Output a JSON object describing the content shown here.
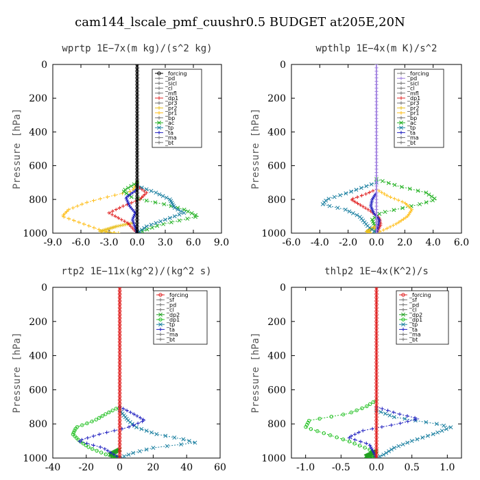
{
  "title": "cam144_lscale_pmf_cuushr0.5  BUDGET at205E,20N",
  "chart_data": [
    {
      "type": "line",
      "title": "wprtp   1E−7x(m kg)/(s^2 kg)",
      "ylabel": "Pressure [hPa]",
      "xlim": [
        -9,
        9
      ],
      "xticks": [
        "-9.0",
        "-6.0",
        "-3.0",
        "0.0",
        "3.0",
        "6.0",
        "9.0"
      ],
      "ylim": [
        1000,
        0
      ],
      "yticks": [
        "0",
        "200",
        "400",
        "600",
        "800",
        "1000"
      ],
      "legend": [
        "_forcing",
        "_pd",
        "_sicl",
        "_cl",
        "_mfl",
        "_dp1",
        "_pr3",
        "_pr2",
        "_pr1",
        "_bp",
        "_ac",
        "_tp",
        "_ta",
        "_ma",
        "_bt"
      ],
      "series": [
        {
          "name": "_forcing",
          "color": "#000000",
          "marker": "o",
          "p": [
            0,
            1000
          ],
          "v": [
            0,
            0
          ]
        },
        {
          "name": "_pr1",
          "color": "#ffc020",
          "marker": "+",
          "p": [
            700,
            750,
            790,
            820,
            860,
            900,
            940,
            980,
            1000
          ],
          "v": [
            0,
            -0.5,
            -3.5,
            -5.5,
            -7.3,
            -8.0,
            -6.0,
            -4.0,
            -2.5
          ]
        },
        {
          "name": "_pr2",
          "color": "#e8c020",
          "marker": "+",
          "p": [
            940,
            960,
            990,
            1000
          ],
          "v": [
            -0.5,
            -2.2,
            -4.0,
            -2.0
          ]
        },
        {
          "name": "_dp1",
          "color": "#e02020",
          "marker": "+",
          "p": [
            720,
            760,
            800,
            840,
            880,
            940,
            1000
          ],
          "v": [
            0,
            1.0,
            0.3,
            -1.5,
            -3.0,
            -1.0,
            0
          ]
        },
        {
          "name": "_ac",
          "color": "#20b020",
          "marker": "x",
          "p": [
            700,
            750,
            790,
            830,
            860,
            900,
            950,
            1000
          ],
          "v": [
            0,
            -1.5,
            -0.5,
            3.0,
            5.0,
            6.5,
            2.5,
            0
          ]
        },
        {
          "name": "_tp",
          "color": "#1a7fa0",
          "marker": "x",
          "p": [
            720,
            760,
            800,
            850,
            880,
            920,
            960,
            1000
          ],
          "v": [
            0,
            2.0,
            3.5,
            4.0,
            5.0,
            3.0,
            1.0,
            0
          ]
        },
        {
          "name": "_ta",
          "color": "#2020c0",
          "marker": "+",
          "p": [
            740,
            790,
            840,
            880,
            920,
            1000
          ],
          "v": [
            0,
            -1.2,
            -0.8,
            -0.2,
            -0.5,
            0
          ]
        }
      ]
    },
    {
      "type": "line",
      "title": "wpthlp   1E−4x(m K)/s^2",
      "ylabel": "Pressure [hPa]",
      "xlim": [
        -6,
        6
      ],
      "xticks": [
        "-6.0",
        "-4.0",
        "-2.0",
        "0.0",
        "2.0",
        "4.0",
        "6.0"
      ],
      "ylim": [
        1000,
        0
      ],
      "yticks": [
        "0",
        "200",
        "400",
        "600",
        "800",
        "1000"
      ],
      "legend": [
        "_forcing",
        "_pd",
        "_sicl",
        "_cl",
        "_mfl",
        "_dp1",
        "_pr3",
        "_pr2",
        "_pr1",
        "_bp",
        "_ac",
        "_tp",
        "_ta",
        "_ma",
        "_bt"
      ],
      "series": [
        {
          "name": "_pd",
          "color": "#a080e0",
          "marker": "+",
          "p": [
            0,
            1000
          ],
          "v": [
            0,
            0
          ]
        },
        {
          "name": "_ac",
          "color": "#20b020",
          "marker": "x",
          "p": [
            680,
            720,
            760,
            800,
            830,
            880,
            920,
            960,
            1000
          ],
          "v": [
            0,
            1.5,
            3.5,
            4.2,
            3.0,
            0.3,
            -0.3,
            -0.1,
            0
          ]
        },
        {
          "name": "_pr1",
          "color": "#ffc020",
          "marker": "+",
          "p": [
            740,
            780,
            820,
            860,
            900,
            940,
            970,
            1000
          ],
          "v": [
            0,
            0.8,
            2.0,
            2.5,
            2.2,
            1.5,
            0.8,
            0
          ]
        },
        {
          "name": "_pr2",
          "color": "#e8c020",
          "marker": "+",
          "p": [
            960,
            990,
            1000
          ],
          "v": [
            0,
            -0.7,
            -0.4
          ]
        },
        {
          "name": "_dp1",
          "color": "#e02020",
          "marker": "+",
          "p": [
            740,
            770,
            800,
            830,
            870,
            910,
            950,
            1000
          ],
          "v": [
            0,
            -0.8,
            -1.8,
            -1.2,
            -0.4,
            0.2,
            0.3,
            0
          ]
        },
        {
          "name": "_tp",
          "color": "#1a7fa0",
          "marker": "x",
          "p": [
            700,
            760,
            800,
            830,
            860,
            900,
            960,
            1000
          ],
          "v": [
            0,
            -2.0,
            -3.5,
            -3.8,
            -2.2,
            -1.2,
            -0.6,
            0
          ]
        },
        {
          "name": "_ta",
          "color": "#2020c0",
          "marker": "+",
          "p": [
            760,
            800,
            840,
            880,
            920,
            1000
          ],
          "v": [
            0,
            -0.3,
            -0.4,
            -0.2,
            0.2,
            0
          ]
        }
      ]
    },
    {
      "type": "line",
      "title": "rtp2   1E−11x(kg^2)/(kg^2 s)",
      "ylabel": "Pressure [hPa]",
      "xlim": [
        -40,
        60
      ],
      "xticks": [
        "-40",
        "-20",
        "0",
        "20",
        "40",
        "60"
      ],
      "ylim": [
        1000,
        0
      ],
      "yticks": [
        "0",
        "200",
        "400",
        "600",
        "800",
        "1000"
      ],
      "legend": [
        "_forcing",
        "_sf",
        "_pd",
        "_cl",
        "_dp2",
        "_dp1",
        "_tp",
        "_ta",
        "_ma",
        "_bt"
      ],
      "series": [
        {
          "name": "_forcing",
          "color": "#e02020",
          "marker": "o",
          "p": [
            0,
            1000
          ],
          "v": [
            0,
            0
          ]
        },
        {
          "name": "_dp1",
          "color": "#20c020",
          "marker": "o",
          "p": [
            700,
            740,
            780,
            820,
            860,
            900,
            940,
            980,
            1000
          ],
          "v": [
            0,
            -8,
            -15,
            -26,
            -28,
            -24,
            -18,
            -8,
            0
          ]
        },
        {
          "name": "_dp2",
          "color": "#20a020",
          "marker": "x",
          "p": [
            950,
            980,
            1000
          ],
          "v": [
            0,
            -6,
            0
          ]
        },
        {
          "name": "_tp",
          "color": "#1a7fa0",
          "marker": "x",
          "p": [
            720,
            780,
            820,
            860,
            890,
            910,
            940,
            970,
            1000
          ],
          "v": [
            0,
            5,
            10,
            22,
            38,
            45,
            20,
            8,
            0
          ]
        },
        {
          "name": "_ta",
          "color": "#2020c0",
          "marker": "+",
          "p": [
            700,
            740,
            780,
            820,
            860,
            900,
            940,
            1000
          ],
          "v": [
            0,
            8,
            15,
            5,
            -12,
            -25,
            -10,
            0
          ]
        }
      ]
    },
    {
      "type": "line",
      "title": "thlp2   1E−4x(K^2)/s",
      "ylabel": "Pressure [hPa]",
      "xlim": [
        -1.2,
        1.2
      ],
      "xticks": [
        "-1.0",
        "-0.5",
        "0.0",
        "0.5",
        "1.0"
      ],
      "ylim": [
        1000,
        0
      ],
      "yticks": [
        "0",
        "200",
        "400",
        "600",
        "800",
        "1000"
      ],
      "legend": [
        "_forcing",
        "_sf",
        "_pd",
        "_cl",
        "_dp2",
        "_dp1",
        "_tp",
        "_ta",
        "_ma",
        "_bt"
      ],
      "series": [
        {
          "name": "_forcing",
          "color": "#e02020",
          "marker": "o",
          "p": [
            0,
            1000
          ],
          "v": [
            0,
            0
          ]
        },
        {
          "name": "_dp1",
          "color": "#20c020",
          "marker": "o",
          "p": [
            660,
            700,
            740,
            780,
            820,
            860,
            900,
            950,
            1000
          ],
          "v": [
            0,
            -0.15,
            -0.4,
            -0.95,
            -1.0,
            -0.7,
            -0.4,
            -0.1,
            0
          ]
        },
        {
          "name": "_dp2",
          "color": "#20a020",
          "marker": "x",
          "p": [
            960,
            990,
            1000
          ],
          "v": [
            0,
            -0.15,
            0
          ]
        },
        {
          "name": "_tp",
          "color": "#1a7fa0",
          "marker": "x",
          "p": [
            720,
            760,
            800,
            820,
            860,
            900,
            940,
            980,
            1000
          ],
          "v": [
            0,
            0.25,
            0.85,
            1.05,
            0.8,
            0.5,
            0.25,
            0.1,
            0
          ]
        },
        {
          "name": "_ta",
          "color": "#2020c0",
          "marker": "+",
          "p": [
            700,
            740,
            770,
            800,
            840,
            880,
            920,
            1000
          ],
          "v": [
            0,
            0.3,
            0.6,
            0.3,
            -0.2,
            -0.4,
            -0.1,
            0
          ]
        }
      ]
    }
  ]
}
